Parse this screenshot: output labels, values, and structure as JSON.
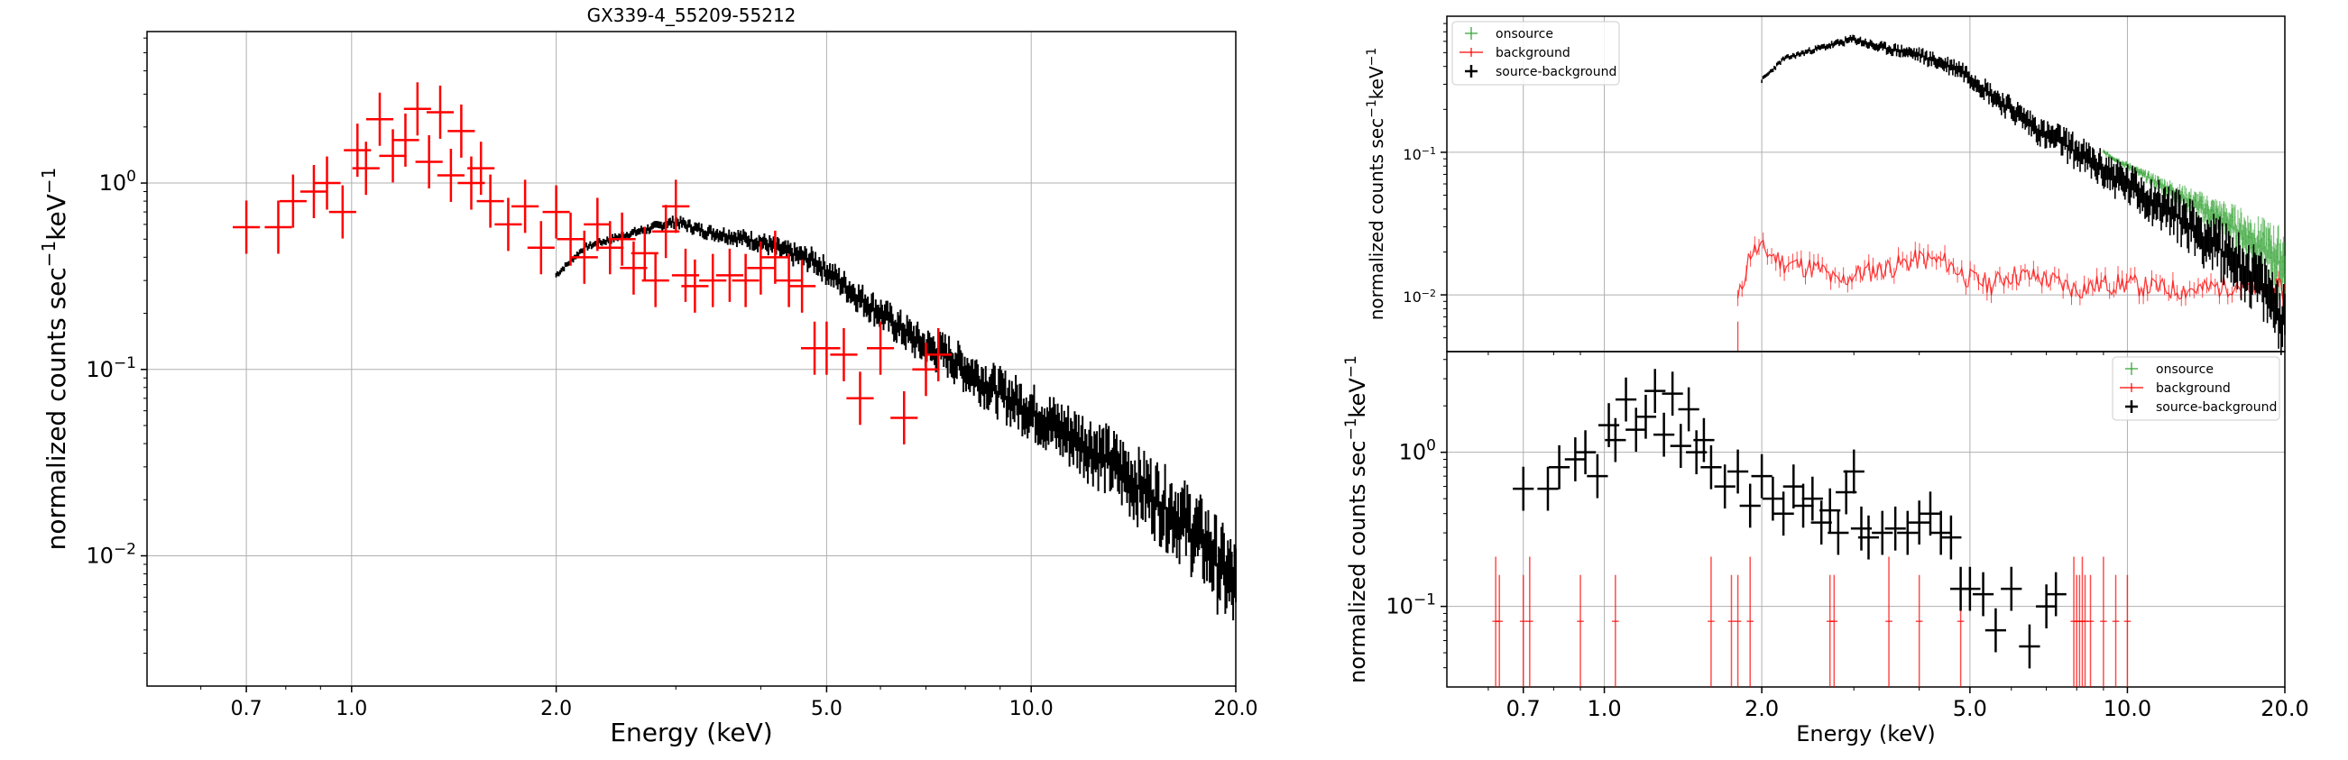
{
  "chart_data": [
    {
      "type": "scatter",
      "title": "GX339-4_55209-55212",
      "xlabel": "Energy (keV)",
      "ylabel": "normalized counts sec$^{-1}$keV$^{-1}$",
      "x_scale": "log",
      "y_scale": "log",
      "xlim": [
        0.5,
        20.0
      ],
      "ylim": [
        0.002,
        6.5
      ],
      "grid": true,
      "xticks": [
        0.7,
        1.0,
        2.0,
        5.0,
        10.0,
        20.0
      ],
      "xtick_labels": [
        "0.7",
        "1.0",
        "2.0",
        "5.0",
        "10.0",
        "20.0"
      ],
      "yticks": [
        0.01,
        0.1,
        1.0
      ],
      "ytick_labels": [
        "10$^{-2}$",
        "10$^{-1}$",
        "10$^{0}$"
      ],
      "colors": {
        "black": "#000000",
        "red": "#ff0000",
        "grid": "#b0b0b0"
      },
      "series": [
        {
          "color": "black",
          "style": "errorbar-dense",
          "x": [
            2.0,
            2.2,
            2.5,
            2.8,
            3.0,
            3.3,
            3.6,
            4.0,
            4.4,
            4.8,
            5.2,
            5.6,
            6.0,
            6.5,
            7.0,
            7.5,
            8.0,
            9.0,
            10.0,
            11.0,
            12.0,
            13.0,
            14.0,
            15.0,
            16.0,
            17.0,
            18.0,
            19.0,
            20.0
          ],
          "y": [
            0.32,
            0.45,
            0.52,
            0.58,
            0.62,
            0.55,
            0.52,
            0.48,
            0.42,
            0.38,
            0.3,
            0.24,
            0.2,
            0.16,
            0.13,
            0.12,
            0.1,
            0.075,
            0.06,
            0.048,
            0.04,
            0.033,
            0.026,
            0.022,
            0.018,
            0.015,
            0.012,
            0.009,
            0.007
          ]
        },
        {
          "color": "red",
          "style": "errorbar",
          "x": [
            0.7,
            0.78,
            0.82,
            0.88,
            0.92,
            0.97,
            1.02,
            1.05,
            1.1,
            1.15,
            1.2,
            1.25,
            1.3,
            1.35,
            1.4,
            1.45,
            1.5,
            1.55,
            1.6,
            1.7,
            1.8,
            1.9,
            2.0,
            2.1,
            2.2,
            2.3,
            2.4,
            2.5,
            2.6,
            2.7,
            2.8,
            2.9,
            3.0,
            3.1,
            3.2,
            3.4,
            3.6,
            3.8,
            4.0,
            4.2,
            4.4,
            4.6,
            4.8,
            5.0,
            5.3,
            5.6,
            6.0,
            6.5,
            7.0,
            7.3
          ],
          "y": [
            0.58,
            0.58,
            0.8,
            0.9,
            1.0,
            0.7,
            1.5,
            1.2,
            2.2,
            1.4,
            1.7,
            2.5,
            1.3,
            2.4,
            1.1,
            1.9,
            1.0,
            1.2,
            0.8,
            0.6,
            0.75,
            0.45,
            0.7,
            0.5,
            0.4,
            0.6,
            0.45,
            0.5,
            0.35,
            0.42,
            0.3,
            0.55,
            0.75,
            0.32,
            0.28,
            0.3,
            0.32,
            0.3,
            0.35,
            0.4,
            0.3,
            0.28,
            0.13,
            0.13,
            0.12,
            0.07,
            0.13,
            0.055,
            0.1,
            0.12
          ]
        }
      ]
    },
    {
      "type": "line",
      "xlabel": "",
      "ylabel": "normalized counts sec$^{-1}$keV$^{-1}$",
      "x_scale": "log",
      "y_scale": "log",
      "xlim": [
        0.5,
        20.0
      ],
      "ylim": [
        0.004,
        0.9
      ],
      "grid": true,
      "yticks": [
        0.01,
        0.1
      ],
      "ytick_labels": [
        "10$^{-2}$",
        "10$^{-1}$"
      ],
      "legend_position": "top-left",
      "legend": [
        "onsource",
        "background",
        "source-background"
      ],
      "colors": {
        "onsource": "#2ca02c",
        "background": "#ff0000",
        "source-background": "#000000"
      },
      "series": [
        {
          "name": "onsource",
          "color": "onsource",
          "x": [
            9.0,
            10.0,
            12.0,
            14.0,
            16.0,
            18.0,
            20.0
          ],
          "y": [
            0.1,
            0.08,
            0.055,
            0.04,
            0.03,
            0.022,
            0.017
          ]
        },
        {
          "name": "background",
          "color": "background",
          "x": [
            1.8,
            1.9,
            2.0,
            2.2,
            2.4,
            2.6,
            2.8,
            3.0,
            3.3,
            3.6,
            4.0,
            4.5,
            5.0,
            5.5,
            6.0,
            7.0,
            8.0,
            9.0,
            10.0,
            12.0,
            14.0,
            16.0,
            18.0,
            20.0
          ],
          "y": [
            0.009,
            0.02,
            0.021,
            0.017,
            0.016,
            0.015,
            0.012,
            0.014,
            0.015,
            0.016,
            0.018,
            0.017,
            0.013,
            0.012,
            0.014,
            0.013,
            0.011,
            0.012,
            0.012,
            0.011,
            0.011,
            0.012,
            0.011,
            0.011
          ]
        },
        {
          "name": "source-background",
          "color": "source-background",
          "x": [
            2.0,
            2.2,
            2.5,
            2.8,
            3.0,
            3.3,
            3.6,
            4.0,
            4.4,
            4.8,
            5.2,
            5.6,
            6.0,
            6.5,
            7.0,
            7.5,
            8.0,
            9.0,
            10.0,
            11.0,
            12.0,
            13.0,
            14.0,
            15.0,
            16.0,
            17.0,
            18.0,
            19.0,
            20.0
          ],
          "y": [
            0.32,
            0.45,
            0.52,
            0.58,
            0.62,
            0.55,
            0.52,
            0.48,
            0.42,
            0.38,
            0.3,
            0.24,
            0.2,
            0.16,
            0.13,
            0.12,
            0.1,
            0.075,
            0.06,
            0.048,
            0.04,
            0.033,
            0.026,
            0.022,
            0.018,
            0.015,
            0.012,
            0.009,
            0.007
          ]
        }
      ]
    },
    {
      "type": "scatter",
      "xlabel": "Energy (keV)",
      "ylabel": "normalized counts sec$^{-1}$keV$^{-1}$",
      "x_scale": "log",
      "y_scale": "log",
      "xlim": [
        0.5,
        20.0
      ],
      "ylim": [
        0.03,
        4.5
      ],
      "grid": true,
      "xticks": [
        0.7,
        1.0,
        2.0,
        5.0,
        10.0,
        20.0
      ],
      "xtick_labels": [
        "0.7",
        "1.0",
        "2.0",
        "5.0",
        "10.0",
        "20.0"
      ],
      "yticks": [
        0.1,
        1.0
      ],
      "ytick_labels": [
        "10$^{-1}$",
        "10$^{0}$"
      ],
      "legend_position": "top-right",
      "legend": [
        "onsource",
        "background",
        "source-background"
      ],
      "colors": {
        "onsource": "#2ca02c",
        "background": "#ff0000",
        "source-background": "#000000"
      },
      "series": [
        {
          "name": "onsource",
          "color": "onsource",
          "x": [],
          "y": []
        },
        {
          "name": "background",
          "color": "background",
          "style": "upper-limit-lines",
          "x": [
            0.62,
            0.63,
            0.7,
            0.72,
            0.9,
            1.05,
            1.6,
            1.75,
            1.8,
            1.9,
            2.7,
            2.75,
            3.5,
            4.0,
            4.8,
            7.9,
            8.0,
            8.1,
            8.2,
            8.3,
            8.5,
            9.0,
            9.5,
            10.0
          ],
          "y": [
            0.08,
            0.08,
            0.08,
            0.08,
            0.08,
            0.08,
            0.08,
            0.08,
            0.08,
            0.08,
            0.08,
            0.08,
            0.08,
            0.08,
            0.08,
            0.08,
            0.08,
            0.08,
            0.08,
            0.08,
            0.08,
            0.08,
            0.08,
            0.08
          ]
        },
        {
          "name": "source-background",
          "color": "source-background",
          "x": [
            0.7,
            0.78,
            0.82,
            0.88,
            0.92,
            0.97,
            1.02,
            1.05,
            1.1,
            1.15,
            1.2,
            1.25,
            1.3,
            1.35,
            1.4,
            1.45,
            1.5,
            1.55,
            1.6,
            1.7,
            1.8,
            1.9,
            2.0,
            2.1,
            2.2,
            2.3,
            2.4,
            2.5,
            2.6,
            2.7,
            2.8,
            2.9,
            3.0,
            3.1,
            3.2,
            3.4,
            3.6,
            3.8,
            4.0,
            4.2,
            4.4,
            4.6,
            4.8,
            5.0,
            5.3,
            5.6,
            6.0,
            6.5,
            7.0,
            7.3
          ],
          "y": [
            0.58,
            0.58,
            0.8,
            0.9,
            1.0,
            0.7,
            1.5,
            1.2,
            2.2,
            1.4,
            1.7,
            2.5,
            1.3,
            2.4,
            1.1,
            1.9,
            1.0,
            1.2,
            0.8,
            0.6,
            0.75,
            0.45,
            0.7,
            0.5,
            0.4,
            0.6,
            0.45,
            0.5,
            0.35,
            0.42,
            0.3,
            0.55,
            0.75,
            0.32,
            0.28,
            0.3,
            0.32,
            0.3,
            0.35,
            0.4,
            0.3,
            0.28,
            0.13,
            0.13,
            0.12,
            0.07,
            0.13,
            0.055,
            0.1,
            0.12
          ]
        }
      ]
    }
  ]
}
